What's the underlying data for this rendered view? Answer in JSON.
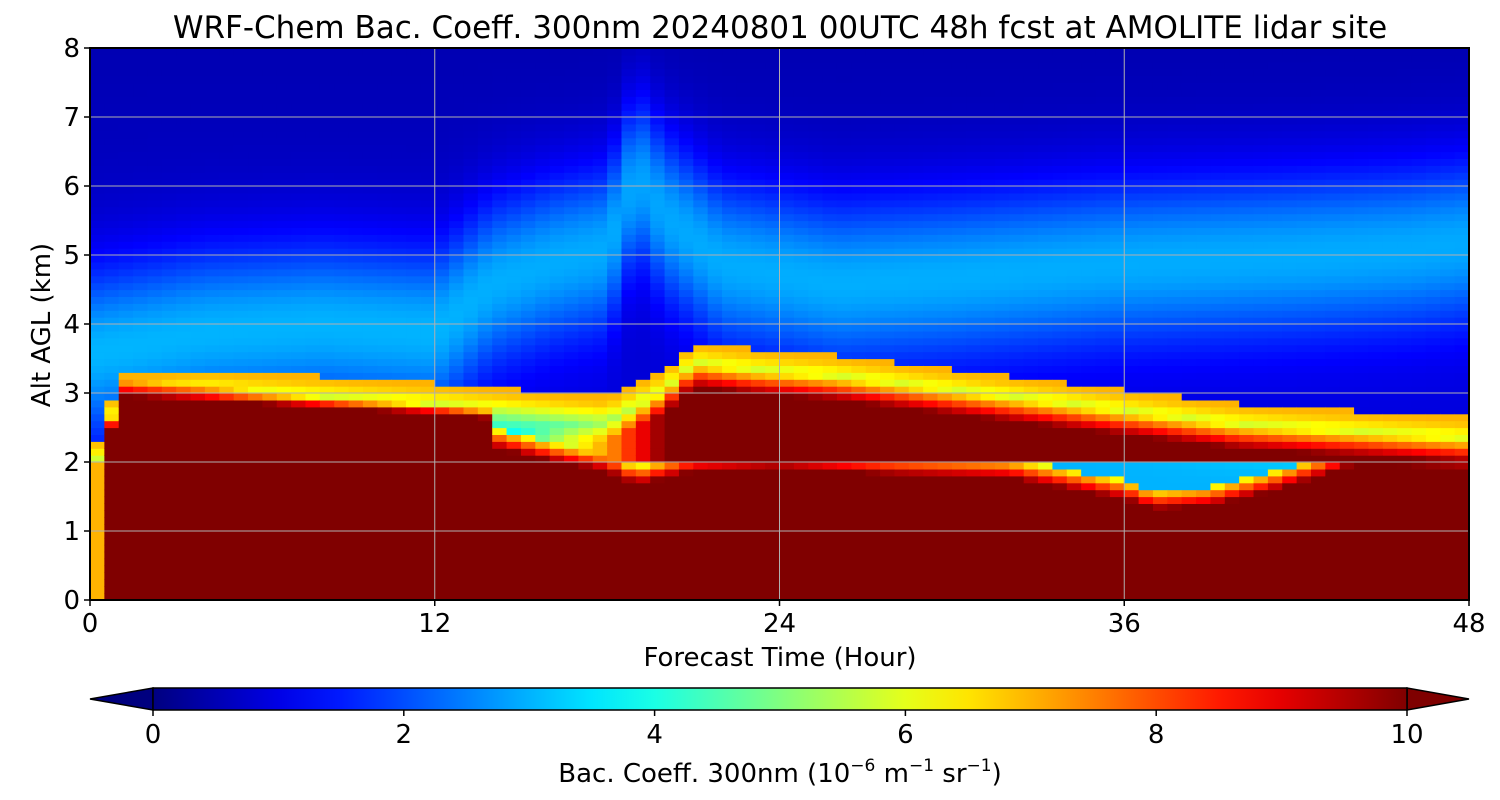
{
  "chart_data": {
    "type": "heatmap",
    "subtype": "filled-contour time-height cross-section",
    "title": "WRF-Chem Bac. Coeff. 300nm  20240801 00UTC 48h fcst at AMOLITE lidar site",
    "xlabel": "Forecast Time (Hour)",
    "ylabel": "Alt AGL (km)",
    "xlim": [
      0,
      48
    ],
    "ylim": [
      0,
      8
    ],
    "xticks": [
      0,
      12,
      24,
      36,
      48
    ],
    "yticks": [
      0,
      1,
      2,
      3,
      4,
      5,
      6,
      7,
      8
    ],
    "grid": true,
    "colormap": "jet",
    "colorbar": {
      "label_prefix": "Bac. Coeff. 300nm  (10",
      "label_exp1": "−6",
      "label_mid": " m",
      "label_exp2": "−1",
      "label_mid2": " sr",
      "label_exp3": "−1",
      "label_suffix": ")",
      "vmin": 0,
      "vmax": 10,
      "ticks": [
        0,
        2,
        4,
        6,
        8,
        10
      ],
      "extend": "both",
      "orientation": "horizontal"
    },
    "x": [
      0,
      0.5,
      1,
      3,
      6,
      9,
      12,
      14,
      15,
      16,
      17,
      18,
      19,
      20,
      21,
      22,
      24,
      26,
      28,
      30,
      32,
      34,
      36,
      37,
      38,
      39,
      40,
      42,
      44,
      46,
      47,
      48
    ],
    "y": [
      0,
      0.5,
      1,
      1.5,
      1.8,
      2,
      2.2,
      2.4,
      2.6,
      2.8,
      3,
      3.2,
      3.5,
      4,
      4.5,
      5,
      5.5,
      6,
      6.5,
      7,
      7.5,
      8
    ],
    "z_description": "backscatter coefficient values approximated per forecast hour: dense aerosol layer (>=10) below ~2 km throughout, elevated residual layer rising to ~3 km early and ~3.5 km around hour 20-24, low values (<1) aloft at 6-8 km"
  }
}
